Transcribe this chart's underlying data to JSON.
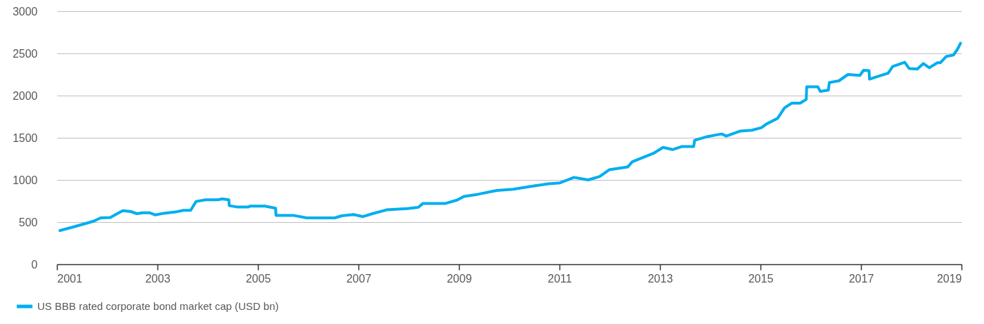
{
  "chart_data": {
    "type": "line",
    "x": [
      2001.06,
      2001.31,
      2001.73,
      2001.87,
      2002.06,
      2002.31,
      2002.47,
      2002.59,
      2002.71,
      2002.85,
      2002.96,
      2003.13,
      2003.36,
      2003.52,
      2003.66,
      2003.77,
      2003.96,
      2004.2,
      2004.29,
      2004.42,
      2004.43,
      2004.58,
      2004.81,
      2004.85,
      2005.14,
      2005.35,
      2005.36,
      2005.7,
      2005.97,
      2006.3,
      2006.53,
      2006.67,
      2006.9,
      2007.09,
      2007.28,
      2007.56,
      2007.98,
      2008.19,
      2008.28,
      2008.72,
      2008.96,
      2009.1,
      2009.38,
      2009.75,
      2010.08,
      2010.45,
      2010.78,
      2011.01,
      2011.29,
      2011.57,
      2011.8,
      2011.99,
      2012.36,
      2012.45,
      2012.87,
      2013.06,
      2013.25,
      2013.43,
      2013.67,
      2013.69,
      2013.95,
      2014.23,
      2014.32,
      2014.6,
      2014.83,
      2015.02,
      2015.11,
      2015.34,
      2015.48,
      2015.62,
      2015.79,
      2015.91,
      2015.92,
      2016.14,
      2016.19,
      2016.35,
      2016.37,
      2016.56,
      2016.74,
      2016.98,
      2017.05,
      2017.16,
      2017.17,
      2017.35,
      2017.54,
      2017.63,
      2017.87,
      2017.96,
      2018.12,
      2018.24,
      2018.36,
      2018.52,
      2018.58,
      2018.7,
      2018.84,
      2018.92,
      2018.98
    ],
    "series": [
      {
        "name": "US BBB rated corporate bond market cap (USD bn)",
        "color": "#00aeef",
        "values": [
          400,
          440,
          510,
          550,
          555,
          635,
          625,
          600,
          610,
          610,
          585,
          605,
          620,
          640,
          640,
          745,
          765,
          765,
          775,
          765,
          695,
          680,
          680,
          690,
          690,
          665,
          580,
          580,
          550,
          550,
          550,
          575,
          590,
          565,
          600,
          645,
          660,
          675,
          720,
          720,
          760,
          805,
          830,
          875,
          890,
          925,
          955,
          965,
          1030,
          1000,
          1040,
          1120,
          1155,
          1215,
          1315,
          1385,
          1360,
          1395,
          1395,
          1470,
          1515,
          1545,
          1520,
          1580,
          1590,
          1620,
          1660,
          1730,
          1855,
          1910,
          1910,
          1955,
          2105,
          2105,
          2050,
          2065,
          2155,
          2175,
          2250,
          2240,
          2300,
          2295,
          2195,
          2230,
          2265,
          2345,
          2395,
          2320,
          2315,
          2380,
          2330,
          2390,
          2390,
          2465,
          2480,
          2550,
          2620
        ]
      }
    ],
    "xlim": [
      2001,
      2019
    ],
    "xticks": [
      2001,
      2003,
      2005,
      2007,
      2009,
      2011,
      2013,
      2015,
      2017,
      2019
    ],
    "ylim": [
      0,
      3000
    ],
    "yticks": [
      0,
      500,
      1000,
      1500,
      2000,
      2500,
      3000
    ],
    "grid": "y",
    "legend": "bottom left",
    "line_style": "solid"
  }
}
